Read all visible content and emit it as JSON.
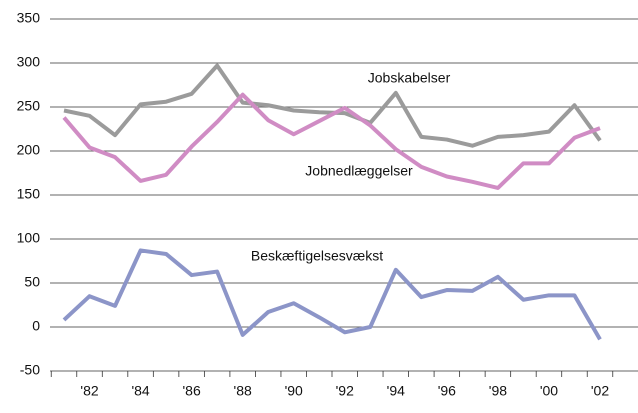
{
  "chart_data": {
    "type": "line",
    "categories": [
      null,
      "'82",
      null,
      "'84",
      null,
      "'86",
      null,
      "'88",
      null,
      "'90",
      null,
      "'92",
      null,
      "'94",
      null,
      "'96",
      null,
      "'98",
      null,
      "'00",
      null,
      "'02"
    ],
    "series": [
      {
        "name": "Jobskabelser",
        "color": "#9b9b9b",
        "values": [
          246,
          240,
          218,
          253,
          256,
          265,
          297,
          255,
          252,
          246,
          244,
          243,
          232,
          266,
          216,
          213,
          206,
          216,
          218,
          222,
          252,
          212
        ]
      },
      {
        "name": "Jobnedlæggelser",
        "color": "#d08cc4",
        "values": [
          238,
          204,
          193,
          166,
          173,
          205,
          233,
          264,
          235,
          219,
          234,
          249,
          229,
          202,
          182,
          171,
          165,
          158,
          186,
          186,
          215,
          226
        ]
      },
      {
        "name": "Beskæftigelsesvækst",
        "color": "#8c95c8",
        "values": [
          8,
          35,
          24,
          87,
          83,
          59,
          63,
          -9,
          17,
          27,
          11,
          -6,
          0,
          65,
          34,
          42,
          41,
          57,
          31,
          36,
          36,
          -14
        ]
      }
    ],
    "ylim": [
      -50,
      350
    ],
    "yticks": [
      -50,
      0,
      50,
      100,
      150,
      200,
      250,
      300,
      350
    ],
    "grid": true
  }
}
